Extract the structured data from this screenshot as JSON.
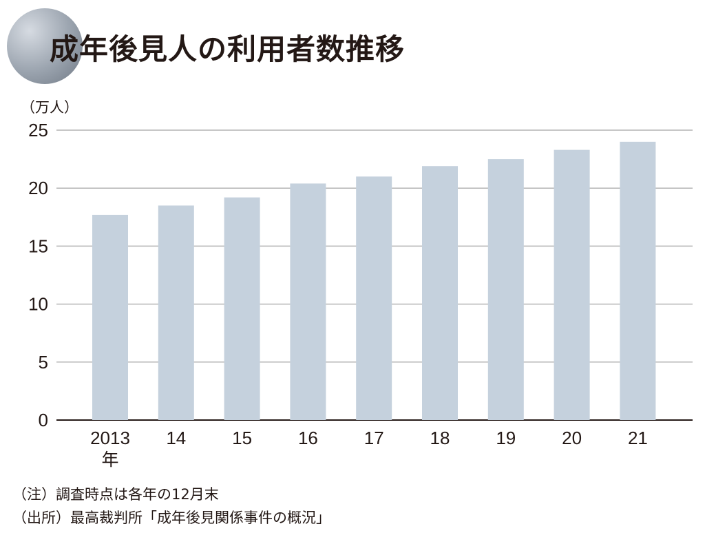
{
  "title": "成年後見人の利用者数推移",
  "unit_label": "（万人）",
  "notes": {
    "note1": "（注）調査時点は各年の12月末",
    "note2": "（出所）最高裁判所「成年後見関係事件の概況」"
  },
  "colors": {
    "bar": "#c5d1dd",
    "grid": "#b3b3b3",
    "axis": "#231815",
    "text": "#231815"
  },
  "chart_data": {
    "type": "bar",
    "title": "成年後見人の利用者数推移",
    "xlabel": "",
    "ylabel": "（万人）",
    "categories": [
      "2013",
      "14",
      "15",
      "16",
      "17",
      "18",
      "19",
      "20",
      "21"
    ],
    "first_category_suffix": "年",
    "values": [
      17.7,
      18.5,
      19.2,
      20.4,
      21.0,
      21.9,
      22.5,
      23.3,
      24.0
    ],
    "ylim": [
      0,
      25
    ],
    "yticks": [
      "0",
      "5",
      "10",
      "15",
      "20",
      "25"
    ],
    "grid": true,
    "legend": "none"
  }
}
